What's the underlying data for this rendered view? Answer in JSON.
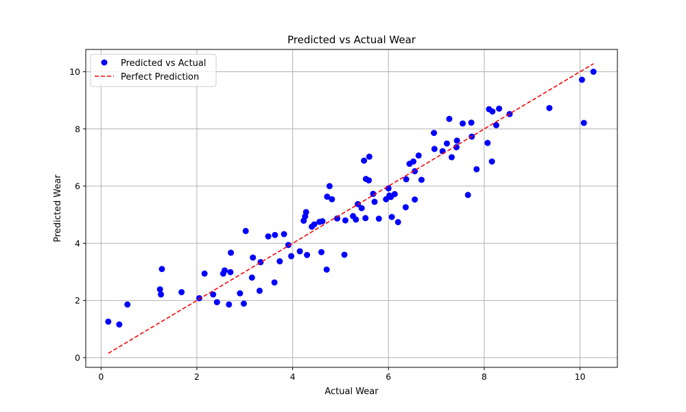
{
  "chart_data": {
    "type": "scatter",
    "title": "Predicted vs Actual Wear",
    "xlabel": "Actual Wear",
    "ylabel": "Predicted Wear",
    "xlim": [
      -0.32,
      10.78
    ],
    "ylim": [
      -0.34,
      10.78
    ],
    "xticks": [
      0,
      2,
      4,
      6,
      8,
      10
    ],
    "yticks": [
      0,
      2,
      4,
      6,
      8,
      10
    ],
    "grid": true,
    "legend_position": "top-left",
    "series": [
      {
        "name": "Predicted vs Actual",
        "kind": "scatter",
        "color": "#0000ff",
        "points": [
          [
            0.15,
            1.26
          ],
          [
            0.38,
            1.16
          ],
          [
            0.55,
            1.86
          ],
          [
            1.23,
            2.39
          ],
          [
            1.25,
            2.21
          ],
          [
            1.27,
            3.1
          ],
          [
            1.68,
            2.29
          ],
          [
            2.05,
            2.08
          ],
          [
            2.16,
            2.94
          ],
          [
            2.34,
            2.21
          ],
          [
            2.42,
            1.94
          ],
          [
            2.55,
            2.94
          ],
          [
            2.58,
            3.05
          ],
          [
            2.67,
            1.86
          ],
          [
            2.7,
            2.99
          ],
          [
            2.71,
            3.67
          ],
          [
            2.9,
            2.25
          ],
          [
            2.98,
            1.89
          ],
          [
            3.02,
            4.43
          ],
          [
            3.15,
            2.8
          ],
          [
            3.17,
            3.5
          ],
          [
            3.31,
            2.34
          ],
          [
            3.33,
            3.34
          ],
          [
            3.49,
            4.24
          ],
          [
            3.62,
            2.63
          ],
          [
            3.63,
            4.29
          ],
          [
            3.73,
            3.37
          ],
          [
            3.82,
            4.32
          ],
          [
            3.91,
            3.94
          ],
          [
            3.97,
            3.55
          ],
          [
            4.15,
            3.72
          ],
          [
            4.23,
            4.79
          ],
          [
            4.26,
            4.94
          ],
          [
            4.28,
            5.09
          ],
          [
            4.3,
            3.59
          ],
          [
            4.4,
            4.58
          ],
          [
            4.45,
            4.66
          ],
          [
            4.56,
            4.75
          ],
          [
            4.6,
            3.69
          ],
          [
            4.62,
            4.77
          ],
          [
            4.71,
            3.08
          ],
          [
            4.72,
            5.63
          ],
          [
            4.77,
            6.0
          ],
          [
            4.82,
            5.54
          ],
          [
            4.93,
            4.87
          ],
          [
            5.08,
            3.6
          ],
          [
            5.1,
            4.8
          ],
          [
            5.26,
            4.95
          ],
          [
            5.32,
            4.83
          ],
          [
            5.36,
            5.37
          ],
          [
            5.44,
            5.23
          ],
          [
            5.49,
            6.89
          ],
          [
            5.52,
            4.88
          ],
          [
            5.53,
            6.25
          ],
          [
            5.59,
            6.2
          ],
          [
            5.6,
            7.03
          ],
          [
            5.68,
            5.73
          ],
          [
            5.71,
            5.45
          ],
          [
            5.8,
            4.86
          ],
          [
            5.95,
            5.54
          ],
          [
            6.0,
            5.92
          ],
          [
            6.02,
            5.67
          ],
          [
            6.05,
            5.62
          ],
          [
            6.07,
            4.92
          ],
          [
            6.13,
            5.72
          ],
          [
            6.2,
            4.74
          ],
          [
            6.36,
            5.26
          ],
          [
            6.37,
            6.24
          ],
          [
            6.44,
            6.78
          ],
          [
            6.52,
            6.86
          ],
          [
            6.55,
            5.53
          ],
          [
            6.55,
            6.52
          ],
          [
            6.63,
            7.07
          ],
          [
            6.69,
            6.22
          ],
          [
            6.95,
            7.86
          ],
          [
            6.96,
            7.3
          ],
          [
            7.13,
            7.22
          ],
          [
            7.22,
            7.49
          ],
          [
            7.27,
            8.35
          ],
          [
            7.32,
            7.01
          ],
          [
            7.42,
            7.36
          ],
          [
            7.43,
            7.59
          ],
          [
            7.55,
            8.19
          ],
          [
            7.66,
            5.69
          ],
          [
            7.73,
            8.22
          ],
          [
            7.74,
            7.73
          ],
          [
            7.84,
            6.59
          ],
          [
            8.07,
            7.51
          ],
          [
            8.1,
            8.69
          ],
          [
            8.16,
            6.86
          ],
          [
            8.17,
            8.61
          ],
          [
            8.25,
            8.13
          ],
          [
            8.31,
            8.71
          ],
          [
            8.53,
            8.52
          ],
          [
            9.36,
            8.73
          ],
          [
            10.04,
            9.72
          ],
          [
            10.08,
            8.21
          ],
          [
            10.28,
            10.0
          ]
        ]
      },
      {
        "name": "Perfect Prediction",
        "kind": "line",
        "style": "dashed",
        "color": "#ff0000",
        "points": [
          [
            0.15,
            0.15
          ],
          [
            10.28,
            10.28
          ]
        ]
      }
    ]
  }
}
